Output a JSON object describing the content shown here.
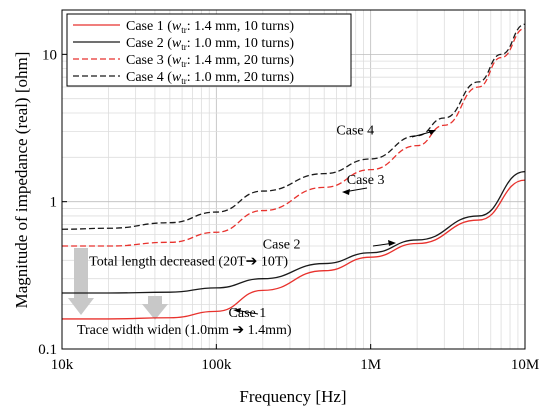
{
  "chart_data": {
    "type": "line",
    "title": "",
    "xlabel": "Frequency [Hz]",
    "ylabel": "Magnitude of impedance (real) [ohm]",
    "x_scale": "log",
    "y_scale": "log",
    "xlim": [
      10000,
      10000000
    ],
    "ylim": [
      0.1,
      20
    ],
    "grid": true,
    "legend_position": "top-left",
    "x_ticks": [
      {
        "value": 10000,
        "label": "10k"
      },
      {
        "value": 100000,
        "label": "100k"
      },
      {
        "value": 1000000,
        "label": "1M"
      },
      {
        "value": 10000000,
        "label": "10M"
      }
    ],
    "y_ticks": [
      {
        "value": 0.1,
        "label": "0.1"
      },
      {
        "value": 1,
        "label": "1"
      },
      {
        "value": 10,
        "label": "10"
      }
    ],
    "series": [
      {
        "name": "Case 1",
        "legend_rest": ": 1.4 mm, 10 turns)",
        "color": "#e8322d",
        "dash": "solid",
        "x": [
          10000,
          20000,
          50000,
          100000,
          200000,
          500000,
          1000000,
          2000000,
          5000000,
          10000000
        ],
        "y": [
          0.16,
          0.16,
          0.163,
          0.18,
          0.25,
          0.34,
          0.42,
          0.52,
          0.75,
          1.4
        ]
      },
      {
        "name": "Case 2",
        "legend_rest": ": 1.0 mm, 10 turns)",
        "color": "#1a1a1a",
        "dash": "solid",
        "x": [
          10000,
          20000,
          50000,
          100000,
          200000,
          500000,
          1000000,
          2000000,
          5000000,
          10000000
        ],
        "y": [
          0.24,
          0.24,
          0.243,
          0.26,
          0.3,
          0.38,
          0.45,
          0.55,
          0.8,
          1.6
        ]
      },
      {
        "name": "Case 3",
        "legend_rest": ": 1.4 mm, 20 turns)",
        "color": "#e8322d",
        "dash": "dashed",
        "x": [
          10000,
          20000,
          50000,
          100000,
          200000,
          500000,
          1000000,
          2000000,
          3000000,
          5000000,
          7000000,
          10000000
        ],
        "y": [
          0.5,
          0.5,
          0.53,
          0.62,
          0.87,
          1.25,
          1.65,
          2.4,
          3.3,
          6,
          9.5,
          15
        ]
      },
      {
        "name": "Case 4",
        "legend_rest": ": 1.0 mm, 20 turns)",
        "color": "#1a1a1a",
        "dash": "dashed",
        "x": [
          10000,
          20000,
          50000,
          100000,
          200000,
          500000,
          1000000,
          2000000,
          3000000,
          5000000,
          7000000,
          10000000
        ],
        "y": [
          0.65,
          0.66,
          0.72,
          0.85,
          1.18,
          1.55,
          1.95,
          2.8,
          3.7,
          6.5,
          10,
          16
        ]
      }
    ],
    "legend_subscript_label": "w",
    "legend_subscript": "tr",
    "annotations": [
      {
        "id": "case4",
        "text": "Case 4",
        "x": 600000,
        "y": 2.85
      },
      {
        "id": "case3",
        "text": "Case 3",
        "x": 700000,
        "y": 1.32
      },
      {
        "id": "case2",
        "text": "Case 2",
        "x": 200000,
        "y": 0.48
      },
      {
        "id": "case1",
        "text": "Case 1",
        "x": 120000,
        "y": 0.165
      },
      {
        "id": "total",
        "text": "Total length decreased (20T➔ 10T)",
        "x": 15000,
        "y": 0.37
      },
      {
        "id": "trace",
        "text": "Trace width widen (1.0mm ➔ 1.4mm)",
        "x": 12500,
        "y": 0.126
      }
    ]
  }
}
